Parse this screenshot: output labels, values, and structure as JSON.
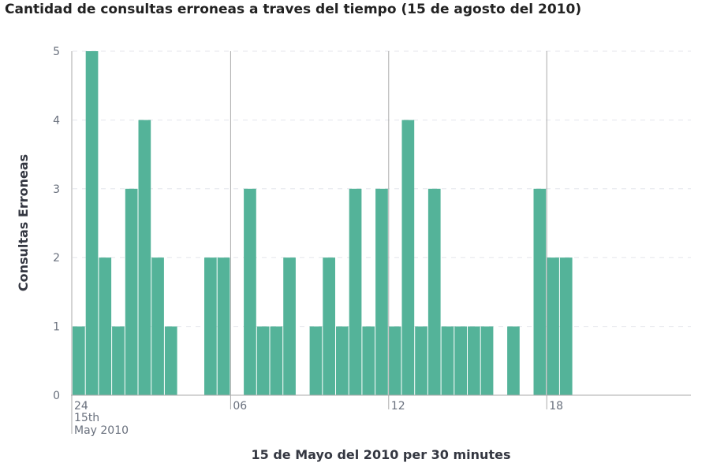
{
  "chart_data": {
    "type": "bar",
    "title": "Cantidad de consultas erroneas a traves del tiempo (15 de agosto del 2010)",
    "xlabel": "15 de Mayo del 2010 per 30 minutes",
    "ylabel": "Consultas Erroneas",
    "ylim": [
      0,
      5
    ],
    "yticks": [
      "0",
      "1",
      "2",
      "3",
      "4",
      "5"
    ],
    "xticks": [
      {
        "slot": 0,
        "label": "24",
        "sub": [
          "15th",
          "May 2010"
        ]
      },
      {
        "slot": 12,
        "label": "06",
        "sub": []
      },
      {
        "slot": 24,
        "label": "12",
        "sub": []
      },
      {
        "slot": 36,
        "label": "18",
        "sub": []
      }
    ],
    "interval_minutes": 30,
    "series": [
      {
        "values": [
          1,
          5,
          2,
          1,
          3,
          4,
          2,
          1,
          0,
          0,
          2,
          2,
          0,
          3,
          1,
          1,
          2,
          0,
          1,
          2,
          1,
          3,
          1,
          3,
          1,
          4,
          1,
          3,
          1,
          1,
          1,
          1,
          0,
          1,
          0,
          3,
          2,
          2
        ]
      }
    ],
    "grid": true,
    "colors": {
      "bar": "#54b399",
      "grid": "#e4e6eb",
      "axis": "#aaaaaa",
      "tick_text": "#69707d",
      "title": "#222222"
    }
  }
}
